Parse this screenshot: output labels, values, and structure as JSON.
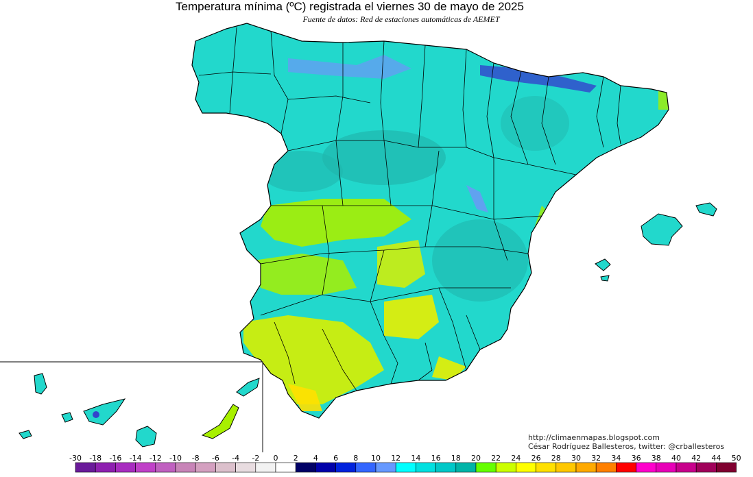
{
  "title": "Temperatura mínima (ºC) registrada el viernes 30 de mayo de 2025",
  "subtitle": "Fuente de datos: Red de estaciones automáticas de AEMET",
  "credits": {
    "blog": "http://climaenmapas.blogspot.com",
    "author": "César Rodríguez Ballesteros, twitter: @crballesteros"
  },
  "legend": {
    "labels": [
      "-30",
      "-18",
      "-16",
      "-14",
      "-12",
      "-10",
      "-8",
      "-6",
      "-4",
      "-2",
      "0",
      "2",
      "4",
      "6",
      "8",
      "10",
      "12",
      "14",
      "16",
      "18",
      "20",
      "22",
      "24",
      "26",
      "28",
      "30",
      "32",
      "34",
      "36",
      "38",
      "40",
      "42",
      "44",
      "50"
    ],
    "colors": [
      "#6a1a9a",
      "#8e1fb0",
      "#a82cc0",
      "#c040c8",
      "#c060c0",
      "#c884b8",
      "#d4a0c0",
      "#dcc0cc",
      "#e8dce0",
      "#f2f2f2",
      "#ffffff",
      "#000066",
      "#0000aa",
      "#0022dd",
      "#3366ff",
      "#6699ff",
      "#00ffff",
      "#00e0e0",
      "#00c8c8",
      "#00b4a8",
      "#66ff00",
      "#ccff00",
      "#ffff00",
      "#ffe000",
      "#ffc800",
      "#ffaa00",
      "#ff8000",
      "#ff0000",
      "#ff00cc",
      "#e800b8",
      "#c8008c",
      "#a0005a",
      "#800030"
    ]
  },
  "colors": {
    "land": "#22d8cc",
    "land_dark": "#1fb8ae",
    "cold": "#7a8cff",
    "warm": "#a8f000",
    "hot": "#e8f000",
    "border": "#000000"
  }
}
